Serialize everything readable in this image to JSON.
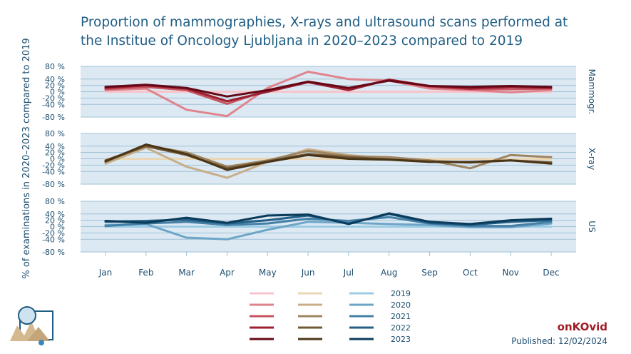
{
  "title": "Proportion of mammographies, X-rays and ultrasound scans performed at the Institue of Oncology Ljubljana in 2020–2023 compared to 2019",
  "brand": "onKOvid",
  "published": "Published: 12/02/2024",
  "colors": {
    "panel_bg": "#dce9f3",
    "grid": "#9ec0d6",
    "text": "#1d4e6e"
  },
  "chart_data": {
    "type": "line",
    "ylabel": "% of examinations in 2020–2023 compared to 2019",
    "categories": [
      "Jan",
      "Feb",
      "Mar",
      "Apr",
      "May",
      "Jun",
      "Jul",
      "Aug",
      "Sep",
      "Oct",
      "Nov",
      "Dec"
    ],
    "ylim": [
      -80,
      80
    ],
    "yticks": [
      "80 %",
      "40 %",
      "20 %",
      "0 %",
      "-20 %",
      "-40 %",
      "-80 %"
    ],
    "ytick_values": [
      80,
      40,
      20,
      0,
      -20,
      -40,
      -80
    ],
    "grid": true,
    "legend_years": [
      "2019",
      "2020",
      "2021",
      "2022",
      "2023"
    ],
    "panels": [
      {
        "label": "Mammogr.",
        "colors": [
          "#f8c4cc",
          "#e0838c",
          "#c65461",
          "#9b1f2f",
          "#640716"
        ],
        "series": [
          {
            "name": "2019",
            "values": [
              0,
              0,
              0,
              0,
              0,
              0,
              0,
              0,
              0,
              0,
              0,
              0
            ]
          },
          {
            "name": "2020",
            "values": [
              5,
              10,
              -57,
              -77,
              12,
              63,
              40,
              35,
              10,
              5,
              -2,
              5
            ]
          },
          {
            "name": "2021",
            "values": [
              8,
              15,
              5,
              -38,
              5,
              30,
              8,
              38,
              15,
              8,
              8,
              10
            ]
          },
          {
            "name": "2022",
            "values": [
              12,
              20,
              10,
              -30,
              0,
              30,
              5,
              38,
              18,
              10,
              15,
              12
            ]
          },
          {
            "name": "2023",
            "values": [
              15,
              22,
              12,
              -15,
              5,
              32,
              12,
              35,
              18,
              15,
              18,
              15
            ]
          }
        ]
      },
      {
        "label": "X-ray",
        "colors": [
          "#ead7b6",
          "#c7ad88",
          "#9f8460",
          "#715836",
          "#4a3517"
        ],
        "series": [
          {
            "name": "2019",
            "values": [
              0,
              0,
              0,
              0,
              0,
              0,
              0,
              0,
              0,
              0,
              0,
              0
            ]
          },
          {
            "name": "2020",
            "values": [
              -15,
              35,
              -25,
              -60,
              -10,
              30,
              12,
              0,
              -5,
              -12,
              -5,
              -10
            ]
          },
          {
            "name": "2021",
            "values": [
              -10,
              42,
              20,
              -25,
              -5,
              25,
              8,
              5,
              -5,
              -30,
              12,
              5
            ]
          },
          {
            "name": "2022",
            "values": [
              -5,
              40,
              12,
              -30,
              -8,
              15,
              5,
              -2,
              -8,
              -12,
              -5,
              -12
            ]
          },
          {
            "name": "2023",
            "values": [
              -8,
              45,
              15,
              -35,
              -10,
              12,
              0,
              -3,
              -10,
              -10,
              -5,
              -15
            ]
          }
        ]
      },
      {
        "label": "US",
        "colors": [
          "#9ccbe4",
          "#6ea5c7",
          "#4480a6",
          "#235f86",
          "#0a3b5a"
        ],
        "series": [
          {
            "name": "2019",
            "values": [
              0,
              0,
              0,
              0,
              0,
              0,
              0,
              0,
              0,
              0,
              0,
              0
            ]
          },
          {
            "name": "2020",
            "values": [
              5,
              8,
              -35,
              -40,
              -10,
              15,
              12,
              8,
              5,
              -2,
              -2,
              10
            ]
          },
          {
            "name": "2021",
            "values": [
              2,
              10,
              15,
              5,
              10,
              25,
              18,
              30,
              10,
              2,
              2,
              15
            ]
          },
          {
            "name": "2022",
            "values": [
              15,
              18,
              22,
              10,
              20,
              35,
              10,
              40,
              12,
              5,
              15,
              20
            ]
          },
          {
            "name": "2023",
            "values": [
              18,
              12,
              28,
              12,
              35,
              38,
              8,
              42,
              15,
              8,
              20,
              25
            ]
          }
        ]
      }
    ]
  }
}
